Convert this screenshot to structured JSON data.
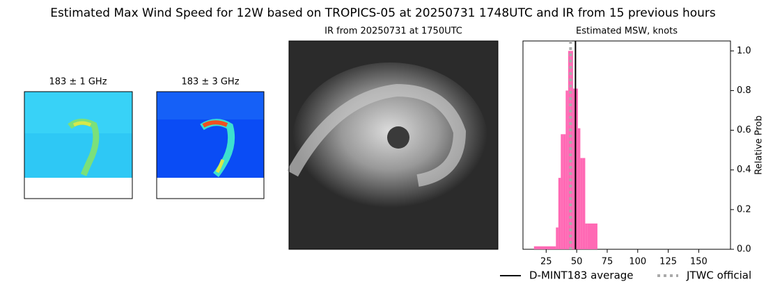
{
  "title": "Estimated Max Wind Speed for 12W based on TROPICS-05 at 20250731 1748UTC and IR from 15 previous hours",
  "panels": [
    {
      "title": "183 ± 1 GHz"
    },
    {
      "title": "183 ± 3 GHz"
    },
    {
      "title": "IR from 20250731 at 1750UTC"
    }
  ],
  "chart_data": {
    "type": "histogram",
    "title": "Estimated MSW, knots",
    "ylabel": "Relative Prob",
    "bins": [
      15,
      33,
      35,
      37,
      39,
      41,
      43,
      45,
      47,
      49,
      51,
      53,
      55,
      57,
      59,
      67
    ],
    "values": [
      0.015,
      0.11,
      0.36,
      0.58,
      0.58,
      0.8,
      1.0,
      1.0,
      0.81,
      0.81,
      0.61,
      0.46,
      0.46,
      0.13,
      0.13
    ],
    "color": "#ff69b4",
    "xlim": [
      6,
      176
    ],
    "xticks": [
      25,
      50,
      75,
      100,
      125,
      150
    ],
    "ylim": [
      0,
      1.05
    ],
    "yticks": [
      {
        "value": 0,
        "label": "0.0"
      },
      0.2,
      0.4,
      0.6,
      0.8,
      {
        "value": 1,
        "label": "1.0"
      }
    ],
    "lines": [
      {
        "name": "D-MINT183 average",
        "value": 49,
        "color": "#000000",
        "style": "solid"
      },
      {
        "name": "JTWC official",
        "value": 45,
        "color": "#aaaaaa",
        "style": "dotted"
      }
    ]
  }
}
